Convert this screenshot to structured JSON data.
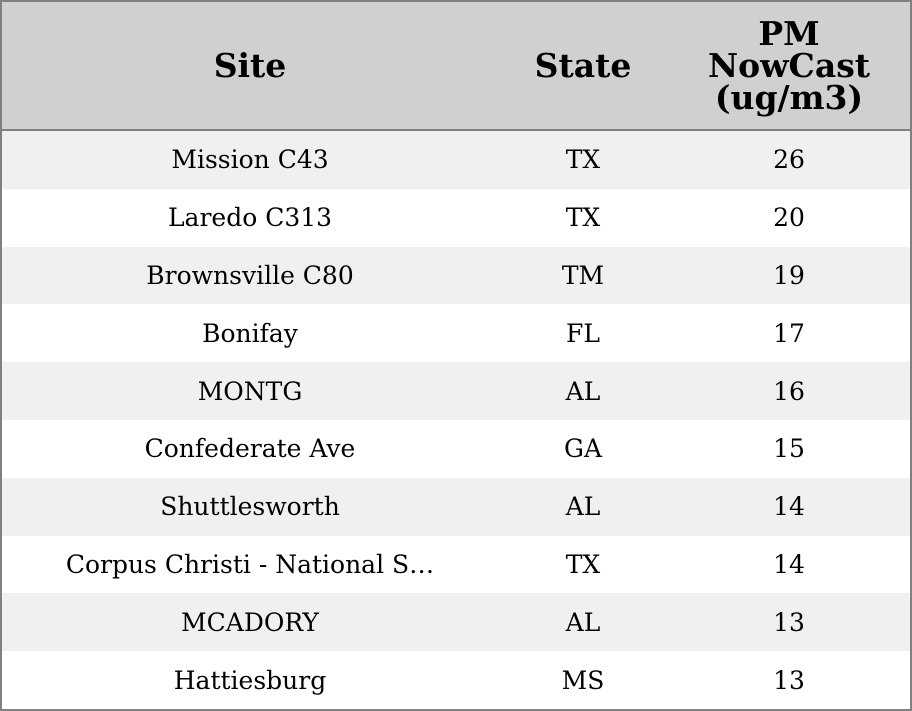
{
  "chart_data": {
    "type": "table",
    "columns": [
      "Site",
      "State",
      "PM NowCast (ug/m3)"
    ],
    "header_lines": {
      "pm": [
        "PM",
        "NowCast",
        "(ug/m3)"
      ]
    },
    "rows": [
      {
        "site": "Mission C43",
        "state": "TX",
        "pm": "26"
      },
      {
        "site": "Laredo C313",
        "state": "TX",
        "pm": "20"
      },
      {
        "site": "Brownsville C80",
        "state": "TM",
        "pm": "19"
      },
      {
        "site": "Bonifay",
        "state": "FL",
        "pm": "17"
      },
      {
        "site": "MONTG",
        "state": "AL",
        "pm": "16"
      },
      {
        "site": "Confederate Ave",
        "state": "GA",
        "pm": "15"
      },
      {
        "site": "Shuttlesworth",
        "state": "AL",
        "pm": "14"
      },
      {
        "site": "Corpus Christi - National S…",
        "state": "TX",
        "pm": "14"
      },
      {
        "site": "MCADORY",
        "state": "AL",
        "pm": "13"
      },
      {
        "site": "Hattiesburg",
        "state": "MS",
        "pm": "13"
      }
    ],
    "colors": {
      "header_bg": "#d0d0d0",
      "stripe_bg": "#f0f0f0",
      "border": "#808080"
    }
  }
}
